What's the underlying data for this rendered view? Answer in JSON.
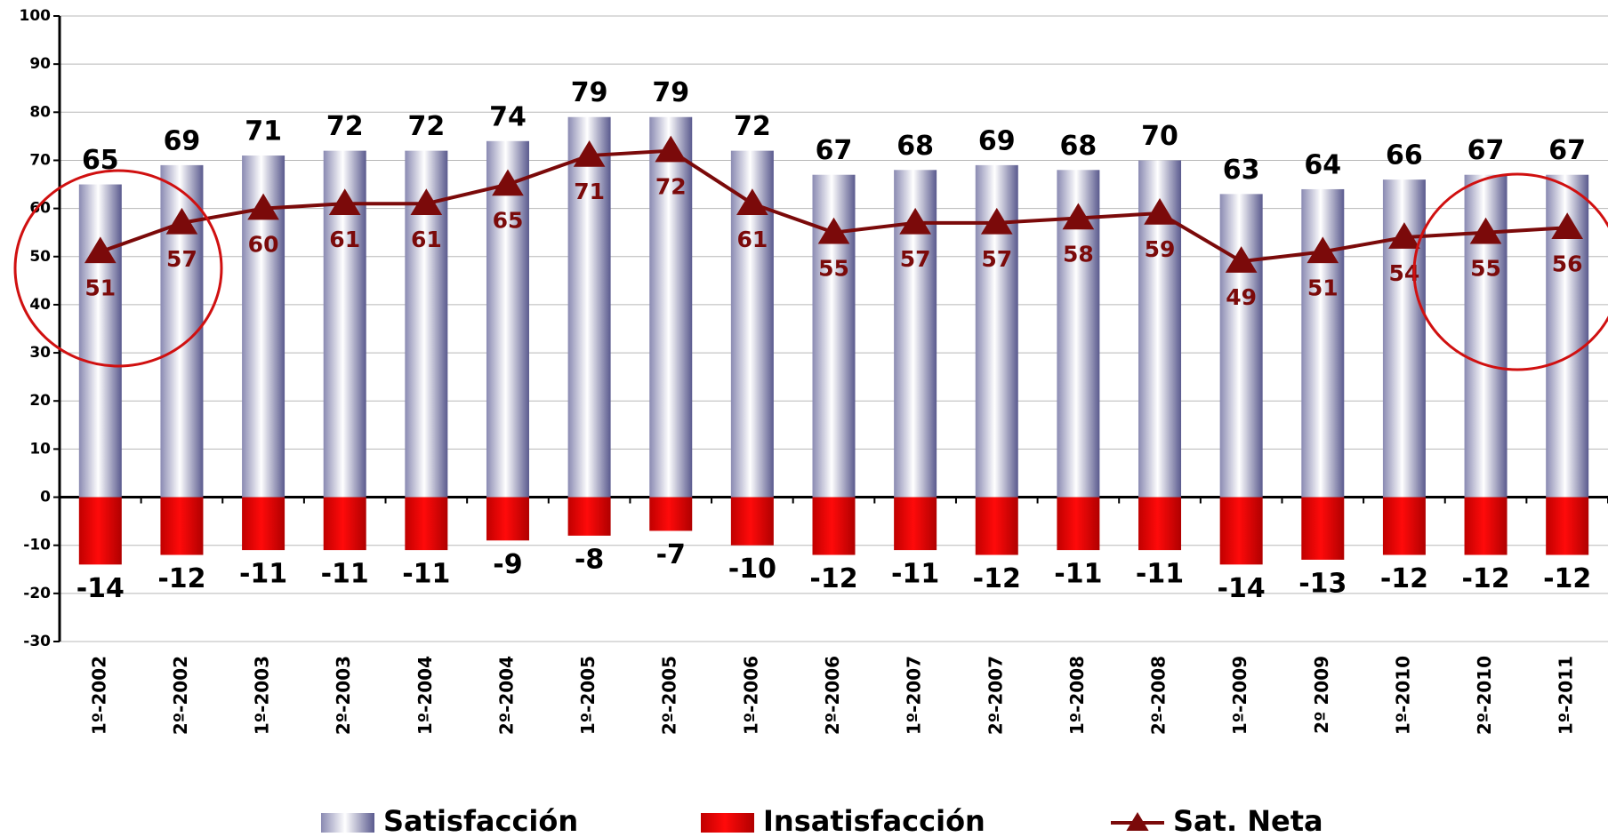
{
  "chart_data": {
    "type": "bar",
    "categories": [
      "1º-2002",
      "2º-2002",
      "1º-2003",
      "2º-2003",
      "1º-2004",
      "2º-2004",
      "1º-2005",
      "2º-2005",
      "1º-2006",
      "2º-2006",
      "1º-2007",
      "2º-2007",
      "1º-2008",
      "2º-2008",
      "1º-2009",
      "2º 2009",
      "1º-2010",
      "2º-2010",
      "1º-2011"
    ],
    "series": [
      {
        "name": "Satisfacción",
        "type": "bar",
        "color": "#8c8cb4",
        "values": [
          65,
          69,
          71,
          72,
          72,
          74,
          79,
          79,
          72,
          67,
          68,
          69,
          68,
          70,
          63,
          64,
          66,
          67,
          67
        ]
      },
      {
        "name": "Insatisfacción",
        "type": "bar",
        "color": "#ff0000",
        "values": [
          -14,
          -12,
          -11,
          -11,
          -11,
          -9,
          -8,
          -7,
          -10,
          -12,
          -11,
          -12,
          -11,
          -11,
          -14,
          -13,
          -12,
          -12,
          -12
        ]
      },
      {
        "name": "Sat. Neta",
        "type": "line",
        "color": "#7b0a0a",
        "values": [
          51,
          57,
          60,
          61,
          61,
          65,
          71,
          72,
          61,
          55,
          57,
          57,
          58,
          59,
          49,
          51,
          54,
          55,
          56
        ]
      }
    ],
    "ylim": [
      -30,
      100
    ],
    "yticks": [
      -30,
      -20,
      -10,
      0,
      10,
      20,
      30,
      40,
      50,
      60,
      70,
      80,
      90,
      100
    ],
    "grid": true
  }
}
